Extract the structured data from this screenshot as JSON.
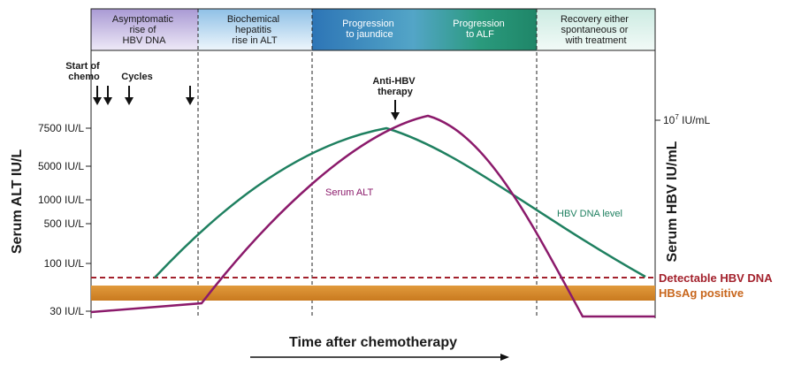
{
  "phases": [
    {
      "lines": [
        "Asymptomatic",
        "rise of",
        "HBV DNA"
      ]
    },
    {
      "lines": [
        "Biochemical",
        "hepatitis",
        "rise in ALT"
      ]
    },
    {
      "lines": [
        "Progression",
        "to jaundice"
      ]
    },
    {
      "lines": [
        "Progression",
        "to ALF"
      ]
    },
    {
      "lines": [
        "Recovery either",
        "spontaneous or",
        "with treatment"
      ]
    }
  ],
  "annotations": {
    "start_chemo": [
      "Start of",
      "chemo"
    ],
    "cycles": "Cycles",
    "anti_hbv": [
      "Anti-HBV",
      "therapy"
    ]
  },
  "left_axis": {
    "title": "Serum ALT IU/L",
    "ticks": [
      "7500 IU/L",
      "5000 IU/L",
      "1000 IU/L",
      "500 IU/L",
      "100 IU/L",
      "30 IU/L"
    ]
  },
  "right_axis": {
    "title": "Serum HBV IU/mL",
    "tick": "10",
    "tick_exp": "7",
    "tick_unit": " IU/mL"
  },
  "x_axis_title": "Time after chemotherapy",
  "curves": {
    "alt_label": "Serum ALT",
    "hbv_label": "HBV DNA level"
  },
  "legend": {
    "detectable": "Detectable HBV DNA",
    "hbsag": "HBsAg positive"
  },
  "colors": {
    "alt": "#8b1a6b",
    "hbv": "#1f8060",
    "detectable": "#a3212c",
    "hbsag_band": "#d9892a",
    "hbsag_text": "#c8661c"
  }
}
